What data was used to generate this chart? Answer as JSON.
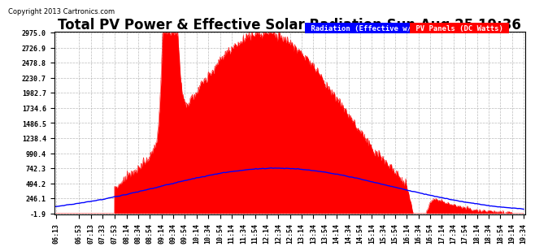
{
  "title": "Total PV Power & Effective Solar Radiation Sun Aug 25 19:36",
  "copyright": "Copyright 2013 Cartronics.com",
  "legend_label1": "Radiation (Effective w/m2)",
  "legend_label2": "PV Panels (DC Watts)",
  "bg_color": "#ffffff",
  "plot_bg_color": "#ffffff",
  "grid_color": "#bbbbbb",
  "yticks": [
    -1.9,
    246.1,
    494.2,
    742.3,
    990.4,
    1238.4,
    1486.5,
    1734.6,
    1982.7,
    2230.7,
    2478.8,
    2726.9,
    2975.0
  ],
  "ymin": -1.9,
  "ymax": 2975.0,
  "red_color": "#ff0000",
  "blue_color": "#0000ff",
  "title_fontsize": 12,
  "tick_fontsize": 6,
  "copyright_fontsize": 6
}
